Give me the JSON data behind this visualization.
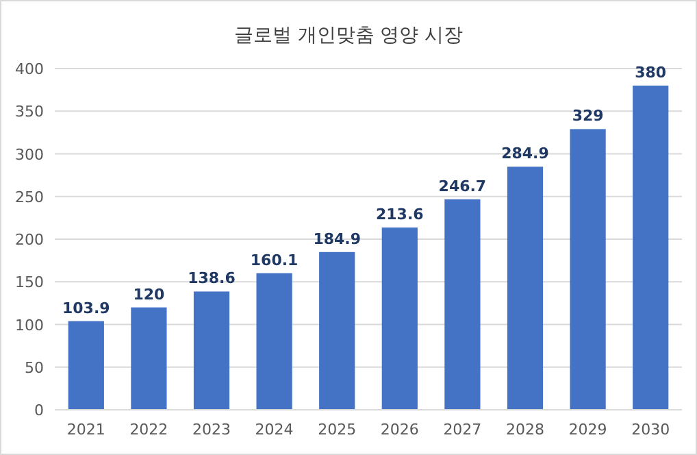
{
  "chart_data": {
    "type": "bar",
    "title": "글로벌 개인맞춤 영양 시장",
    "categories": [
      "2021",
      "2022",
      "2023",
      "2024",
      "2025",
      "2026",
      "2027",
      "2028",
      "2029",
      "2030"
    ],
    "values": [
      103.9,
      120,
      138.6,
      160.1,
      184.9,
      213.6,
      246.7,
      284.9,
      329,
      380
    ],
    "color": "#4472c4",
    "ylim": [
      0,
      400
    ],
    "yticks": [
      0,
      50,
      100,
      150,
      200,
      250,
      300,
      350,
      400
    ],
    "grid": "y",
    "data_labels": true
  }
}
